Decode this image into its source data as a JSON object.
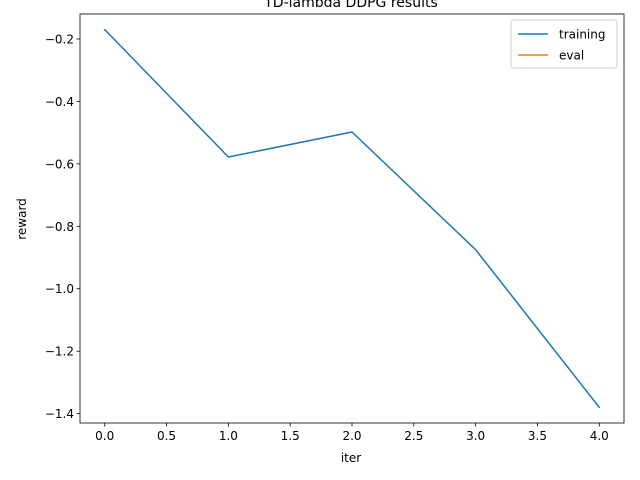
{
  "chart_data": {
    "type": "line",
    "title": "TD-lambda DDPG results",
    "xlabel": "iter",
    "ylabel": "reward",
    "xlim": [
      -0.2,
      4.2
    ],
    "ylim": [
      -1.43,
      -0.12
    ],
    "xticks": [
      "0.0",
      "0.5",
      "1.0",
      "1.5",
      "2.0",
      "2.5",
      "3.0",
      "3.5",
      "4.0"
    ],
    "yticks": [
      "-0.2",
      "-0.4",
      "-0.6",
      "-0.8",
      "-1.0",
      "-1.2",
      "-1.4"
    ],
    "grid": false,
    "legend_position": "top-right",
    "series": [
      {
        "name": "training",
        "color": "#1f77b4",
        "x": [
          0,
          1,
          2,
          3,
          4
        ],
        "y": [
          -0.17,
          -0.578,
          -0.498,
          -0.875,
          -1.38
        ]
      },
      {
        "name": "eval",
        "color": "#ff7f0e",
        "x": [],
        "y": []
      }
    ]
  }
}
